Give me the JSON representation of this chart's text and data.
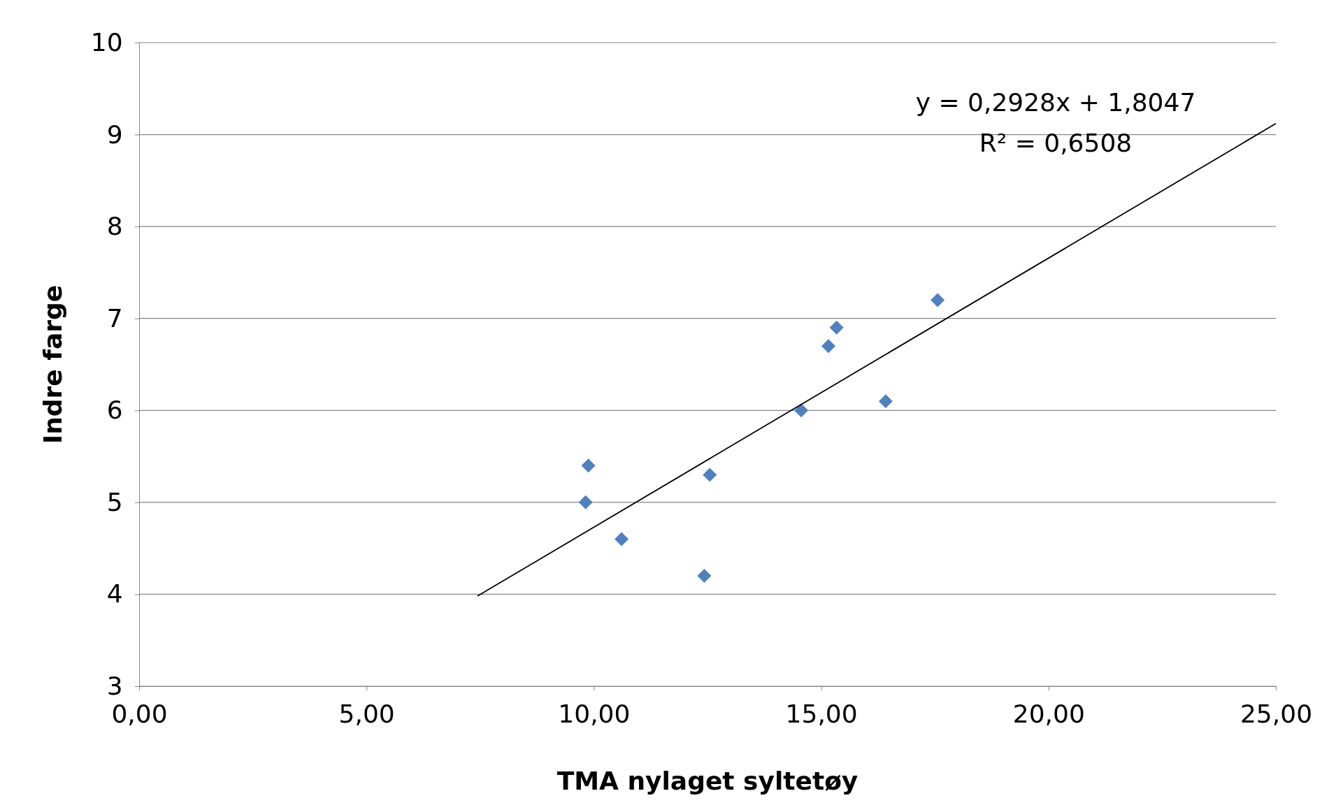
{
  "chart_data": {
    "type": "scatter",
    "xlabel": "TMA  nylaget syltetøy",
    "ylabel": "Indre farge",
    "xlim": [
      0,
      25
    ],
    "xticks": [
      {
        "value": 0,
        "label": "0,00"
      },
      {
        "value": 5,
        "label": "5,00"
      },
      {
        "value": 10,
        "label": "10,00"
      },
      {
        "value": 15,
        "label": "15,00"
      },
      {
        "value": 20,
        "label": "20,00"
      },
      {
        "value": 25,
        "label": "25,00"
      }
    ],
    "ylim": [
      3,
      10
    ],
    "yticks": [
      3,
      4,
      5,
      6,
      7,
      8,
      9,
      10
    ],
    "grid": "y",
    "annotations": [
      "y = 0,2928x + 1,8047",
      "R² = 0,6508"
    ],
    "series": [
      {
        "marker": "diamond",
        "color": "#4f81bd",
        "x": [
          9.88,
          9.82,
          10.61,
          12.43,
          12.55,
          14.56,
          15.16,
          15.34,
          16.42,
          17.56
        ],
        "values": [
          5.4,
          5.0,
          4.6,
          4.2,
          5.3,
          6.0,
          6.7,
          6.9,
          6.1,
          7.2
        ]
      },
      {
        "type": "line",
        "color": "#000000",
        "line_style": "solid",
        "x": [
          7.44,
          25
        ],
        "values": [
          3.98,
          9.12
        ]
      }
    ]
  }
}
